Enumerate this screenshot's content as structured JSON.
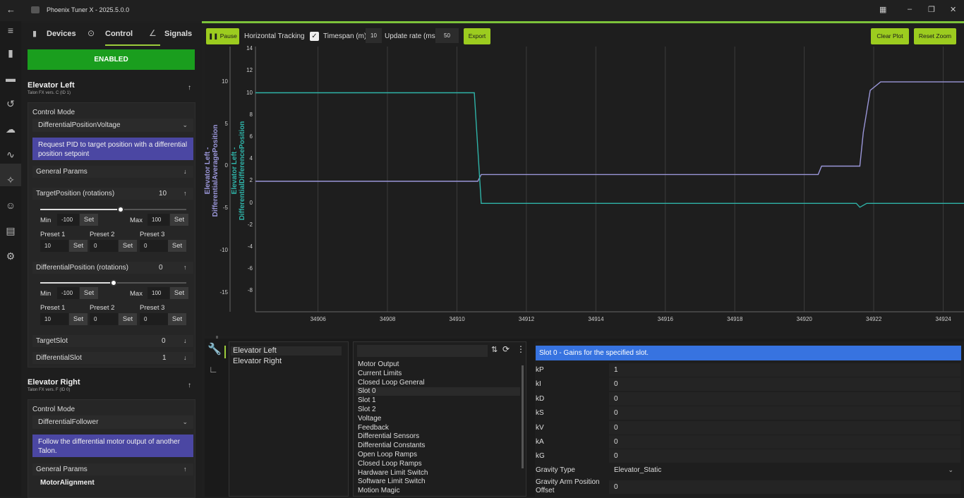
{
  "window": {
    "title": "Phoenix Tuner X - 2025.5.0.0"
  },
  "tabs": [
    {
      "label": "Devices"
    },
    {
      "label": "Control"
    },
    {
      "label": "Signals"
    }
  ],
  "enable_label": "ENABLED",
  "devices": [
    {
      "name": "Elevator Left",
      "subtitle": "Talon FX vers. C (ID 1)",
      "control_mode_label": "Control Mode",
      "control_mode": "DifferentialPositionVoltage",
      "description": "Request PID to target position with a differential position setpoint",
      "general_params": "General Params",
      "target_position": {
        "label": "TargetPosition (rotations)",
        "value": "10",
        "slider_fraction": 0.55,
        "min": "-100",
        "max": "100",
        "presets": [
          "10",
          "0",
          "0"
        ]
      },
      "differential_position": {
        "label": "DifferentialPosition (rotations)",
        "value": "0",
        "slider_fraction": 0.5,
        "min": "-100",
        "max": "100",
        "presets": [
          "10",
          "0",
          "0"
        ]
      },
      "target_slot": {
        "label": "TargetSlot",
        "value": "0"
      },
      "differential_slot": {
        "label": "DifferentialSlot",
        "value": "1"
      }
    },
    {
      "name": "Elevator Right",
      "subtitle": "Talon FX vers. F (ID 0)",
      "control_mode_label": "Control Mode",
      "control_mode": "DifferentialFollower",
      "description": "Follow the differential motor output of another Talon.",
      "general_params": "General Params",
      "motor_alignment": "MotorAlignment"
    }
  ],
  "labels": {
    "min": "Min",
    "max": "Max",
    "set": "Set",
    "preset1": "Preset 1",
    "preset2": "Preset 2",
    "preset3": "Preset 3"
  },
  "plot_toolbar": {
    "pause": "Pause",
    "horizontal_tracking": "Horizontal Tracking",
    "timespan_label": "Timespan (m):",
    "timespan": "10",
    "update_rate_label": "Update rate (ms):",
    "update_rate": "50",
    "export": "Export",
    "clear_plot": "Clear Plot",
    "reset_zoom": "Reset Zoom"
  },
  "chart_data": {
    "type": "line",
    "xlabel": "",
    "x_ticks": [
      34906,
      34908,
      34910,
      34912,
      34914,
      34916,
      34918,
      34920,
      34922,
      34924
    ],
    "xlim": [
      34904.2,
      34924.6
    ],
    "y_left": {
      "label": "Elevator Left - DifferentialAveragePosition",
      "ticks": [
        10,
        5,
        0,
        -5,
        -10,
        -15
      ],
      "lim": [
        -17.3,
        14.2
      ]
    },
    "y_right": {
      "label": "Elevator Left - DifferentialDifferencePosition",
      "ticks": [
        14,
        12,
        10,
        8,
        6,
        4,
        2,
        0,
        -2,
        -4,
        -6,
        -8
      ],
      "lim": [
        -9.9,
        14.2
      ]
    },
    "colors": {
      "average": "#9a96d8",
      "difference": "#2fb3a8"
    },
    "series": [
      {
        "axis": "left",
        "color": "#9a96d8",
        "x": [
          34904.2,
          34910.6,
          34910.7,
          34920.4,
          34920.5,
          34921.6,
          34921.7,
          34921.9,
          34922.2,
          34924.6
        ],
        "y": [
          -1.8,
          -1.8,
          -1.0,
          -1.0,
          0.0,
          0.0,
          4.0,
          9.0,
          10.0,
          10.0
        ]
      },
      {
        "axis": "right",
        "color": "#2fb3a8",
        "x": [
          34904.2,
          34910.5,
          34910.7,
          34921.5,
          34921.6,
          34921.8,
          34924.6
        ],
        "y": [
          10,
          10,
          -0.05,
          -0.05,
          -0.4,
          -0.05,
          -0.05
        ]
      }
    ]
  },
  "bottom": {
    "devices": [
      "Elevator Left",
      "Elevator Right"
    ],
    "config_groups": [
      "Motor Output",
      "Current Limits",
      "Closed Loop General",
      "Slot 0",
      "Slot 1",
      "Slot 2",
      "Voltage",
      "Feedback",
      "Differential Sensors",
      "Differential Constants",
      "Open Loop Ramps",
      "Closed Loop Ramps",
      "Hardware Limit Switch",
      "Software Limit Switch",
      "Motion Magic"
    ],
    "header": "Slot 0 - Gains for the specified slot.",
    "gains": [
      {
        "label": "kP",
        "value": "1"
      },
      {
        "label": "kI",
        "value": "0"
      },
      {
        "label": "kD",
        "value": "0"
      },
      {
        "label": "kS",
        "value": "0"
      },
      {
        "label": "kV",
        "value": "0"
      },
      {
        "label": "kA",
        "value": "0"
      },
      {
        "label": "kG",
        "value": "0"
      }
    ],
    "gravity_type": {
      "label": "Gravity Type",
      "value": "Elevator_Static"
    },
    "gravity_offset": {
      "label": "Gravity Arm Position Offset",
      "value": "0"
    }
  }
}
